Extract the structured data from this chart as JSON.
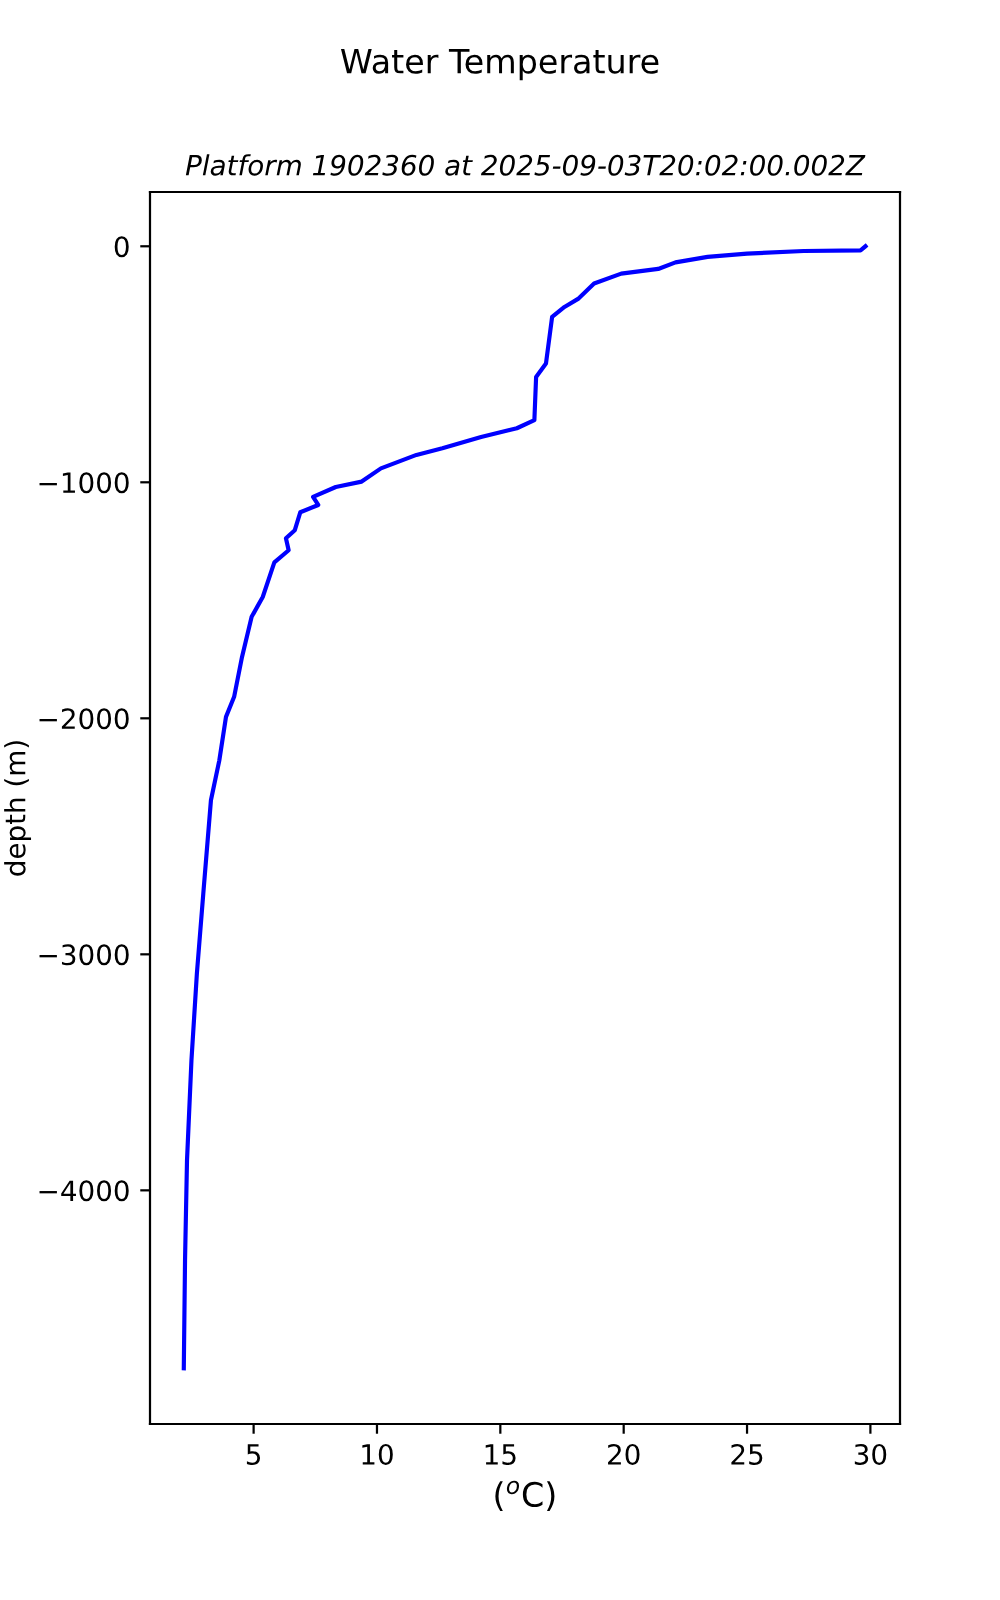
{
  "chart_data": {
    "type": "line",
    "title": "Water Temperature",
    "subtitle": "Platform 1902360 at 2025-09-03T20:02:00.002Z",
    "xlabel": "($^{o}$C)",
    "ylabel": "depth (m)",
    "series": [
      {
        "color": "#0000ff",
        "x": [
          29.8,
          29.6,
          27.3,
          25.0,
          23.4,
          22.1,
          21.4,
          19.9,
          18.8,
          18.15,
          17.6,
          17.1,
          16.85,
          16.45,
          16.38,
          15.67,
          14.22,
          12.65,
          11.6,
          10.16,
          9.38,
          8.33,
          7.41,
          7.62,
          6.89,
          6.67,
          6.31,
          6.42,
          5.84,
          5.37,
          4.92,
          4.53,
          4.21,
          3.88,
          3.61,
          3.27,
          2.96,
          2.7,
          2.48,
          2.3,
          2.22,
          2.17
        ],
        "values": [
          0,
          -17,
          -20,
          -31,
          -45,
          -68,
          -96,
          -116,
          -158,
          -223,
          -257,
          -299,
          -497,
          -554,
          -737,
          -771,
          -808,
          -856,
          -884,
          -941,
          -997,
          -1020,
          -1062,
          -1096,
          -1127,
          -1203,
          -1237,
          -1288,
          -1339,
          -1486,
          -1570,
          -1740,
          -1909,
          -1994,
          -2178,
          -2347,
          -2743,
          -3082,
          -3449,
          -3873,
          -4297,
          -4754
        ]
      }
    ],
    "xlim": [
      0.8,
      31.2
    ],
    "ylim": [
      -4990,
      230
    ],
    "xticks": [
      5,
      10,
      15,
      20,
      25,
      30
    ],
    "yticks": [
      -4000,
      -3000,
      -2000,
      -1000,
      0
    ],
    "grid": false,
    "legend": false,
    "marker": "none",
    "line_style": "solid"
  }
}
